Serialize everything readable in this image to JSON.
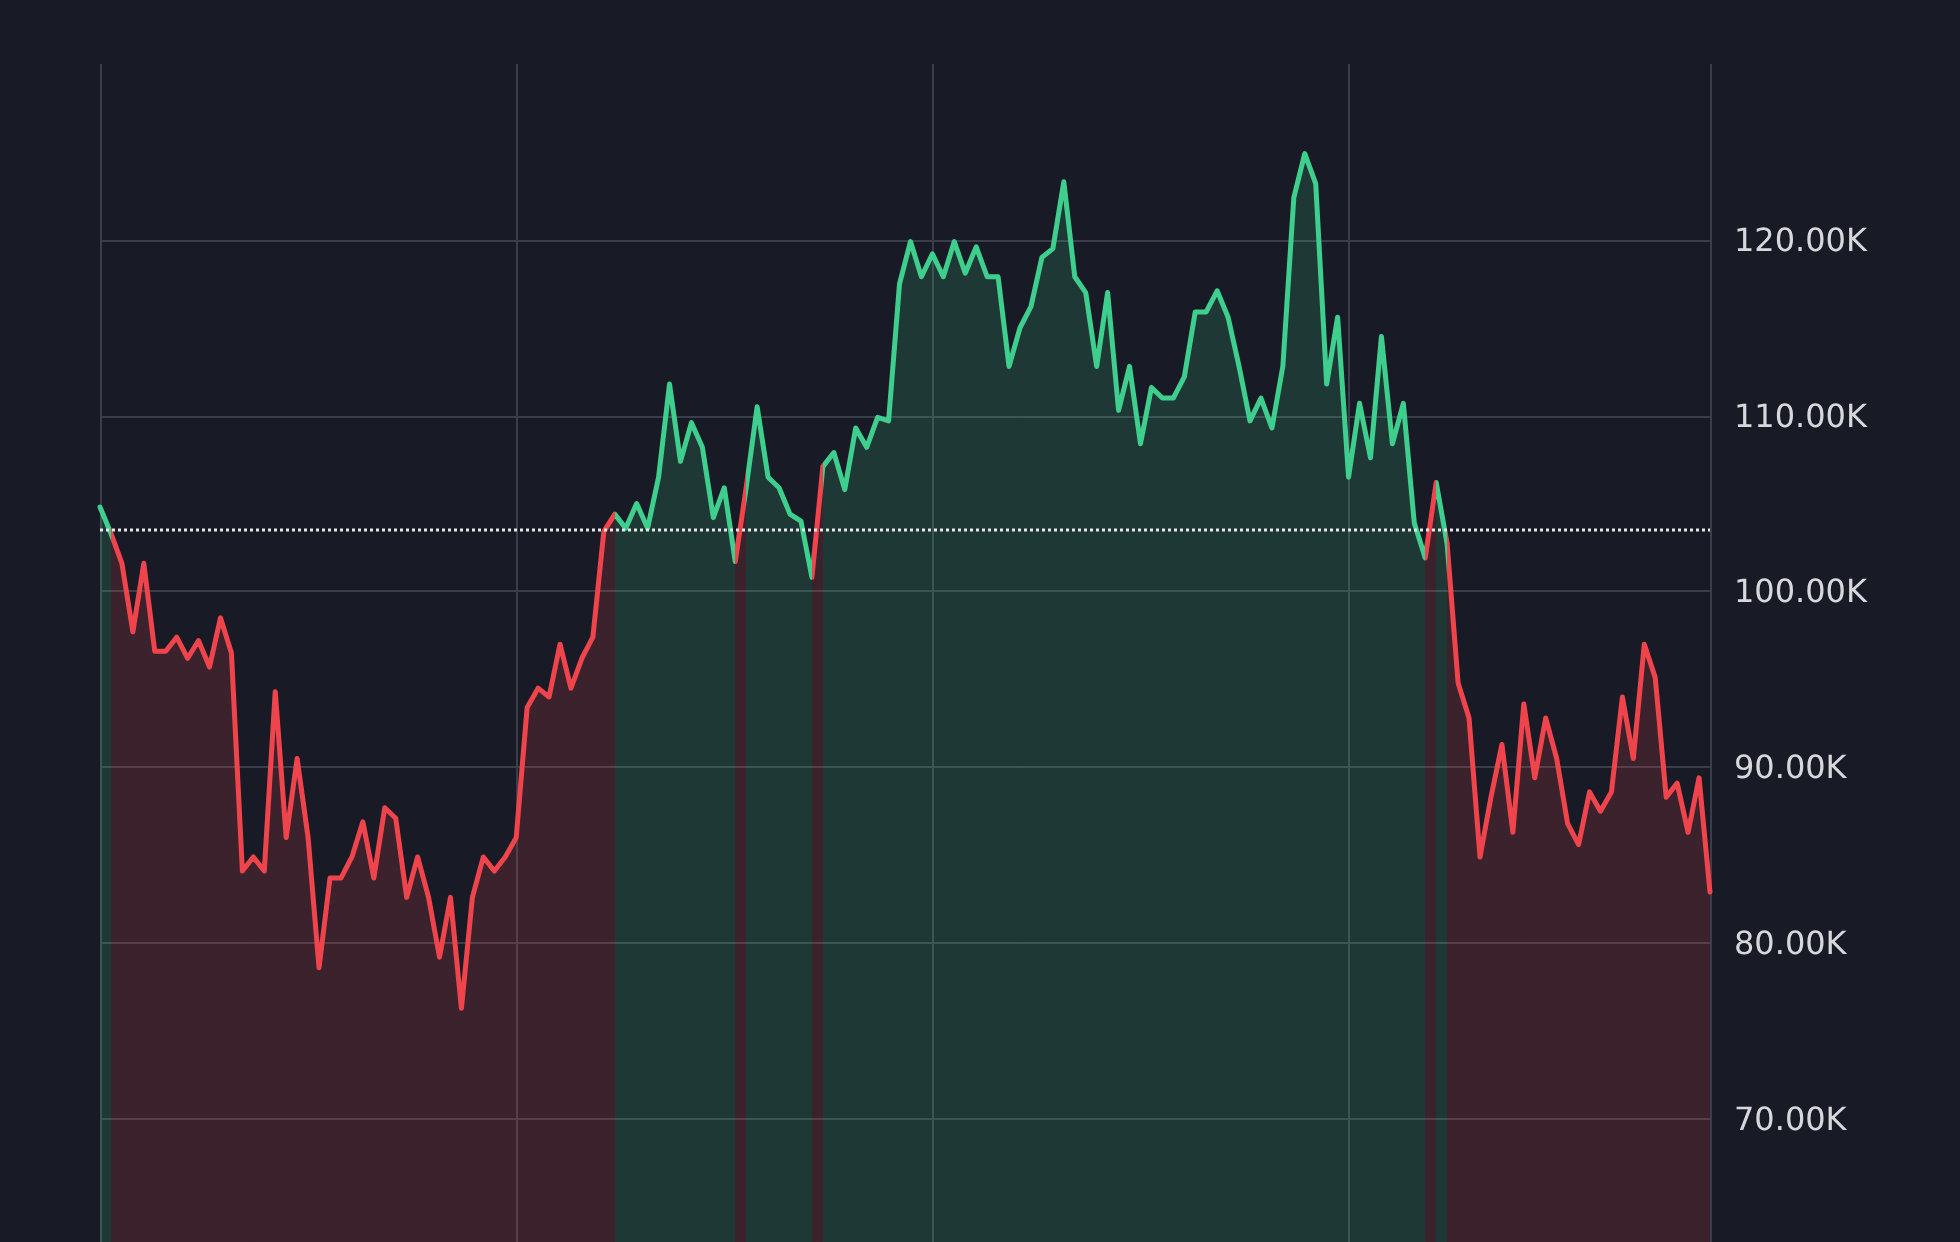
{
  "chart_data": {
    "type": "area",
    "categories": [
      null,
      null,
      null,
      null,
      null,
      null,
      null,
      null,
      null,
      null,
      null,
      null,
      null,
      null,
      null,
      null,
      null,
      null,
      null,
      null,
      null,
      null,
      null,
      null,
      null,
      null,
      null,
      null,
      null,
      null,
      null,
      null,
      null,
      null,
      null,
      null,
      null,
      null,
      null,
      null,
      null,
      null,
      null,
      null,
      null,
      null,
      null,
      null,
      null,
      null,
      null,
      null,
      null,
      null,
      null,
      null,
      null,
      null,
      null,
      null,
      null,
      null,
      null,
      null,
      null,
      null,
      null,
      null,
      null,
      null,
      null,
      null,
      null,
      null,
      null,
      null,
      null,
      null,
      null,
      null,
      null,
      null,
      null,
      null,
      null,
      null,
      null,
      null,
      null,
      null,
      null,
      null,
      null,
      null,
      null,
      null,
      null,
      null,
      null,
      null,
      null,
      null,
      null,
      null,
      null,
      null,
      null,
      null,
      null,
      null,
      null,
      null,
      null,
      null,
      null,
      null,
      null,
      null,
      null,
      null,
      null,
      null,
      null,
      null,
      null,
      null,
      null,
      null,
      null,
      null,
      null,
      null,
      null,
      null,
      null,
      null,
      null,
      null,
      null,
      null,
      null,
      null,
      null,
      null,
      null,
      null,
      null,
      null
    ],
    "series": [
      {
        "values": [
          104.8,
          103.3,
          101.6,
          97.7,
          101.6,
          96.6,
          96.6,
          97.4,
          96.2,
          97.2,
          95.7,
          98.5,
          96.5,
          84.1,
          84.9,
          84.1,
          94.3,
          86.0,
          90.5,
          86.0,
          78.6,
          83.7,
          83.7,
          84.9,
          86.9,
          83.7,
          87.7,
          87.1,
          82.6,
          84.9,
          82.6,
          79.2,
          82.6,
          76.3,
          82.6,
          84.9,
          84.1,
          84.9,
          86.0,
          93.4,
          94.5,
          94.0,
          97.0,
          94.5,
          96.2,
          97.4,
          103.4,
          104.4,
          103.6,
          105.0,
          103.6,
          106.5,
          111.8,
          107.4,
          109.6,
          108.2,
          104.2,
          105.9,
          101.7,
          105.9,
          110.5,
          106.5,
          105.9,
          104.4,
          104.0,
          100.8,
          107.1,
          107.9,
          105.8,
          109.3,
          108.2,
          109.9,
          109.7,
          117.5,
          119.9,
          117.9,
          119.2,
          117.9,
          119.9,
          118.1,
          119.6,
          117.9,
          117.9,
          112.8,
          115.0,
          116.2,
          119.0,
          119.5,
          123.3,
          117.9,
          117.0,
          112.8,
          117.0,
          110.3,
          112.8,
          108.4,
          111.6,
          111.0,
          111.0,
          112.2,
          115.9,
          115.9,
          117.1,
          115.6,
          112.8,
          109.7,
          111.0,
          109.3,
          112.8,
          122.4,
          124.9,
          123.2,
          111.8,
          115.6,
          106.5,
          110.7,
          107.6,
          114.5,
          108.4,
          110.7,
          103.9,
          101.9,
          106.2,
          102.7,
          94.8,
          92.8,
          84.9,
          88.3,
          91.3,
          86.3,
          93.6,
          89.4,
          92.8,
          90.5,
          86.8,
          85.6,
          88.6,
          87.5,
          88.6,
          94.0,
          90.5,
          97.0,
          95.1,
          88.3,
          89.1,
          86.3,
          89.4,
          82.9
        ],
        "colors": [
          "#3ecf8e",
          "#f0444c",
          "#f0444c",
          "#f0444c",
          "#f0444c",
          "#f0444c",
          "#f0444c",
          "#f0444c",
          "#f0444c",
          "#f0444c",
          "#f0444c",
          "#f0444c",
          "#f0444c",
          "#f0444c",
          "#f0444c",
          "#f0444c",
          "#f0444c",
          "#f0444c",
          "#f0444c",
          "#f0444c",
          "#f0444c",
          "#f0444c",
          "#f0444c",
          "#f0444c",
          "#f0444c",
          "#f0444c",
          "#f0444c",
          "#f0444c",
          "#f0444c",
          "#f0444c",
          "#f0444c",
          "#f0444c",
          "#f0444c",
          "#f0444c",
          "#f0444c",
          "#f0444c",
          "#f0444c",
          "#f0444c",
          "#f0444c",
          "#f0444c",
          "#f0444c",
          "#f0444c",
          "#f0444c",
          "#f0444c",
          "#f0444c",
          "#f0444c",
          "#f0444c",
          "#3ecf8e",
          "#3ecf8e",
          "#3ecf8e",
          "#3ecf8e",
          "#3ecf8e",
          "#3ecf8e",
          "#3ecf8e",
          "#3ecf8e",
          "#3ecf8e",
          "#3ecf8e",
          "#3ecf8e",
          "#f0444c",
          "#3ecf8e",
          "#3ecf8e",
          "#3ecf8e",
          "#3ecf8e",
          "#3ecf8e",
          "#3ecf8e",
          "#f0444c",
          "#3ecf8e",
          "#3ecf8e",
          "#3ecf8e",
          "#3ecf8e",
          "#3ecf8e",
          "#3ecf8e",
          "#3ecf8e",
          "#3ecf8e",
          "#3ecf8e",
          "#3ecf8e",
          "#3ecf8e",
          "#3ecf8e",
          "#3ecf8e",
          "#3ecf8e",
          "#3ecf8e",
          "#3ecf8e",
          "#3ecf8e",
          "#3ecf8e",
          "#3ecf8e",
          "#3ecf8e",
          "#3ecf8e",
          "#3ecf8e",
          "#3ecf8e",
          "#3ecf8e",
          "#3ecf8e",
          "#3ecf8e",
          "#3ecf8e",
          "#3ecf8e",
          "#3ecf8e",
          "#3ecf8e",
          "#3ecf8e",
          "#3ecf8e",
          "#3ecf8e",
          "#3ecf8e",
          "#3ecf8e",
          "#3ecf8e",
          "#3ecf8e",
          "#3ecf8e",
          "#3ecf8e",
          "#3ecf8e",
          "#3ecf8e",
          "#3ecf8e",
          "#3ecf8e",
          "#3ecf8e",
          "#3ecf8e",
          "#3ecf8e",
          "#3ecf8e",
          "#3ecf8e",
          "#3ecf8e",
          "#3ecf8e",
          "#3ecf8e",
          "#3ecf8e",
          "#3ecf8e",
          "#3ecf8e",
          "#3ecf8e",
          "#f0444c",
          "#3ecf8e",
          "#f0444c",
          "#f0444c",
          "#f0444c",
          "#f0444c",
          "#f0444c",
          "#f0444c",
          "#f0444c",
          "#f0444c",
          "#f0444c",
          "#f0444c",
          "#f0444c",
          "#f0444c",
          "#f0444c",
          "#f0444c",
          "#f0444c",
          "#f0444c",
          "#f0444c",
          "#f0444c",
          "#f0444c",
          "#f0444c",
          "#f0444c",
          "#f0444c",
          "#f0444c",
          "#f0444c",
          "#f0444c"
        ]
      }
    ],
    "ylim": [
      63,
      130
    ],
    "yticks": [
      {
        "value": 70,
        "label": "70.00K"
      },
      {
        "value": 80,
        "label": "80.00K"
      },
      {
        "value": 90,
        "label": "90.00K"
      },
      {
        "value": 100,
        "label": "100.00K"
      },
      {
        "value": 110,
        "label": "110.00K"
      },
      {
        "value": 120,
        "label": "120.00K"
      }
    ],
    "ref_lines": [
      {
        "axis": "y",
        "value": 103.5,
        "color": "#e6e6e6",
        "line_style": "dotted"
      }
    ],
    "grid": true,
    "tick_labels": "y",
    "marker": "none"
  }
}
